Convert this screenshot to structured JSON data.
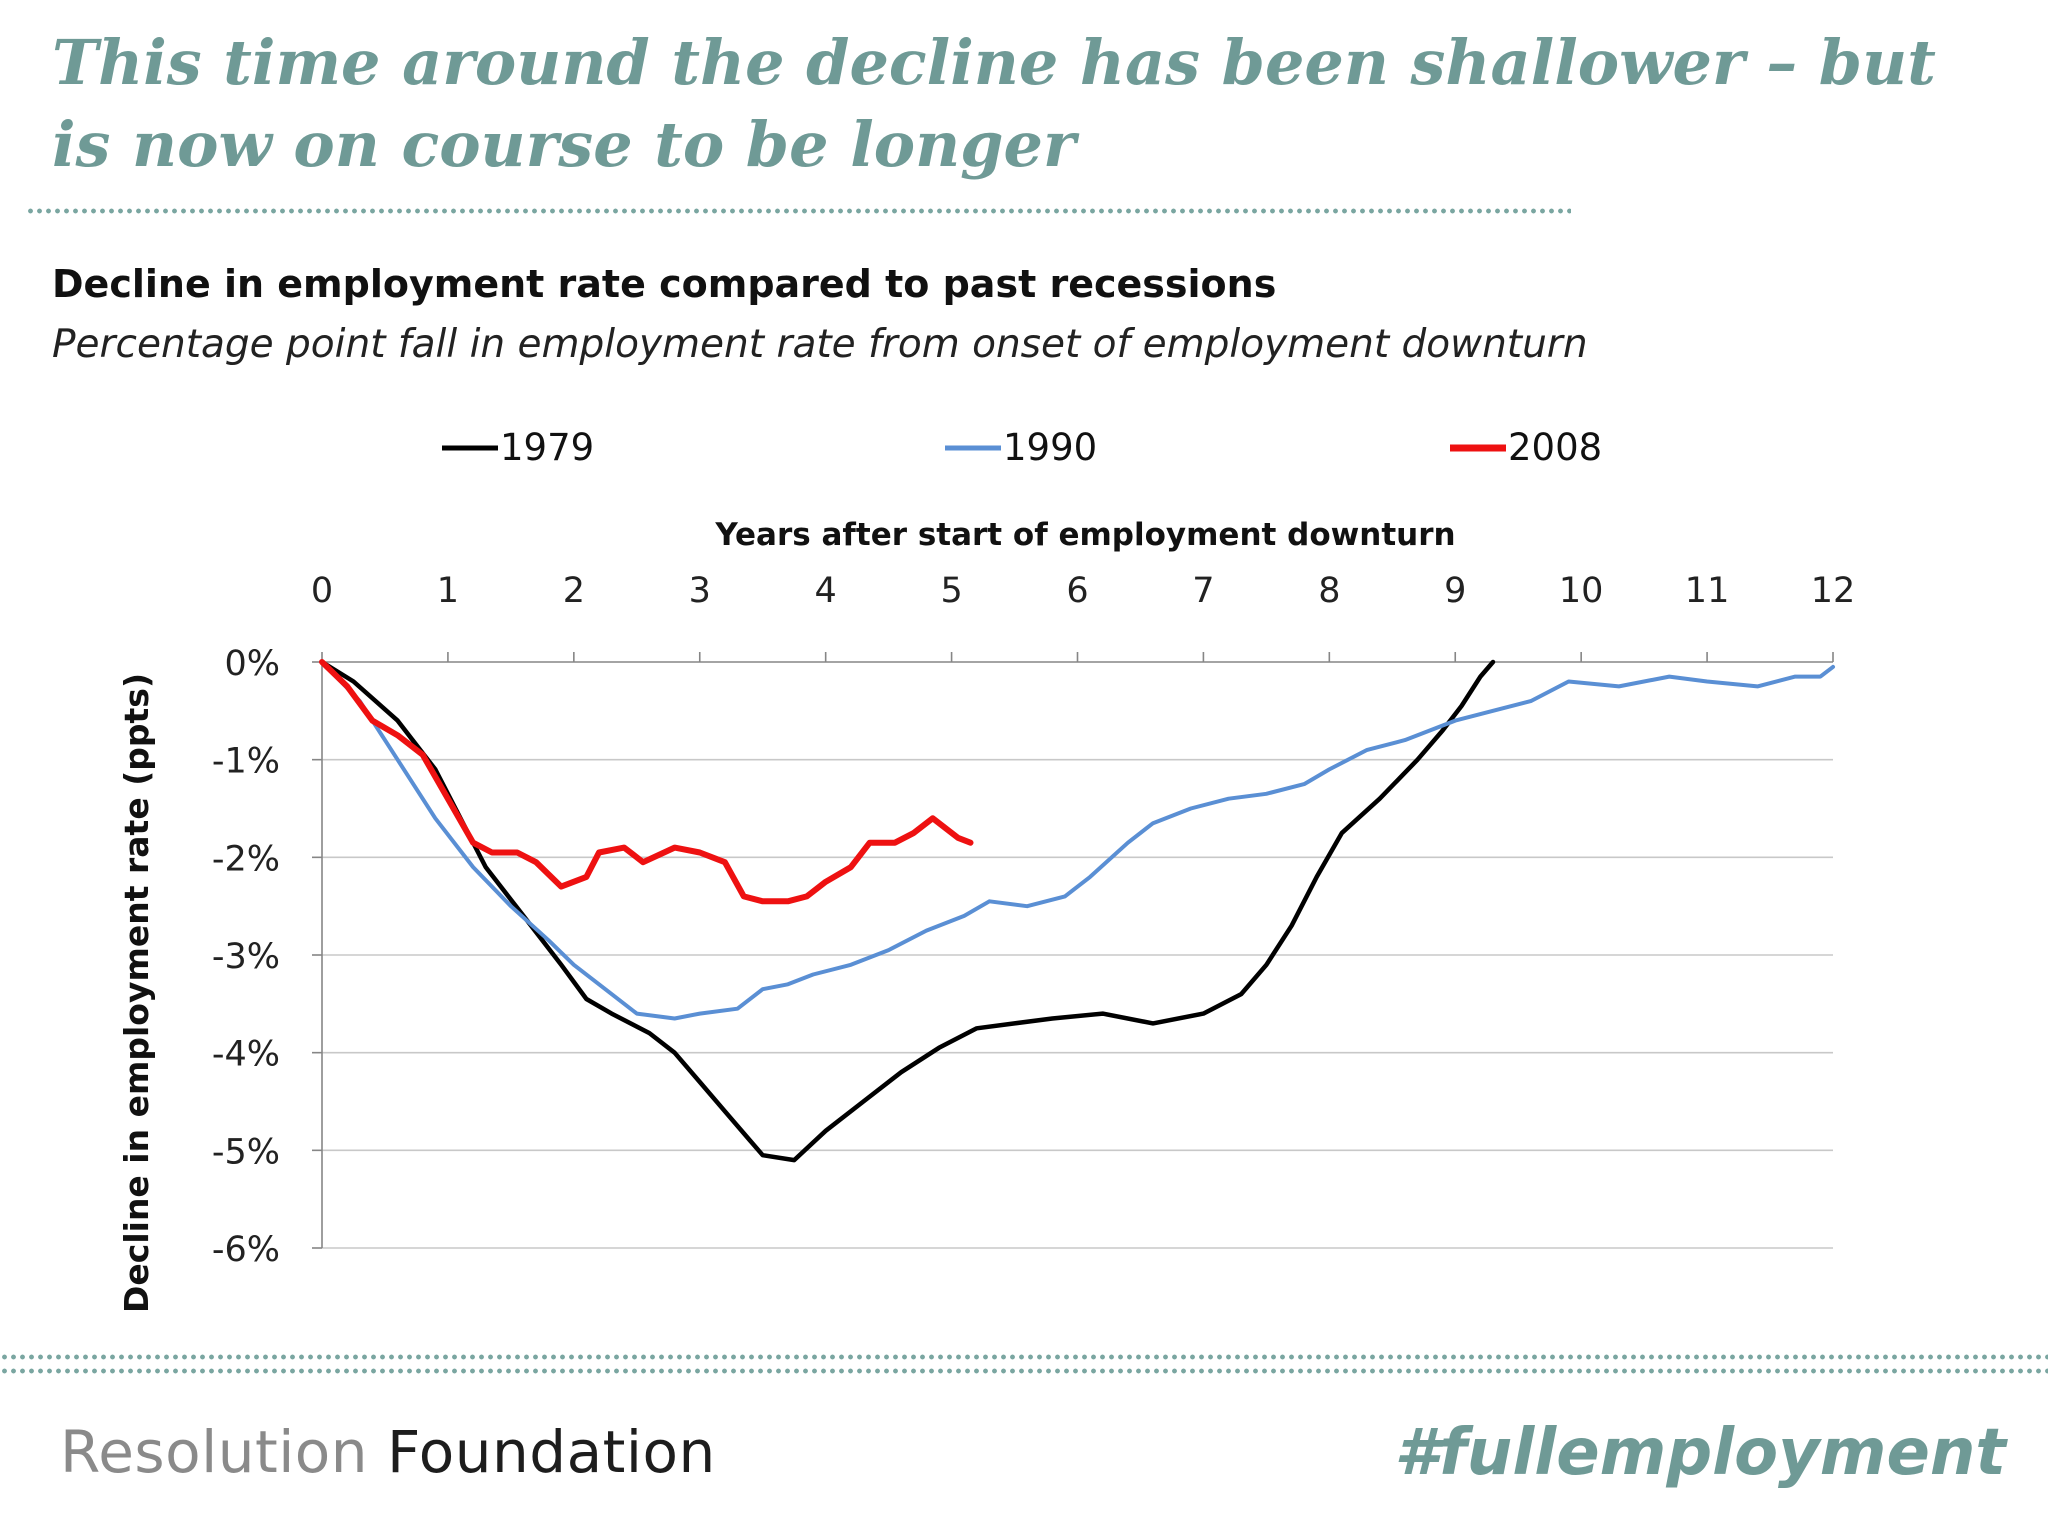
{
  "slide": {
    "headline": "This time around the decline has been shallower – but is now on course to be longer",
    "brand_part1": "Resolution",
    "brand_part2": "Foundation",
    "hashtag": "#fullemployment",
    "accent_color": "#6f9a96"
  },
  "chart_data": {
    "type": "line",
    "title": "Decline in employment rate compared to past recessions",
    "subtitle": "Percentage point fall in employment rate from onset of employment downturn",
    "xlabel": "Years after start of employment downturn",
    "ylabel": "Decline in employment rate (ppts)",
    "x_axis_position": "top",
    "xlim": [
      0,
      12
    ],
    "ylim": [
      -6,
      0
    ],
    "x_ticks": [
      "0",
      "1",
      "2",
      "3",
      "4",
      "5",
      "6",
      "7",
      "8",
      "9",
      "10",
      "11",
      "12"
    ],
    "y_ticks": [
      "0%",
      "-1%",
      "-2%",
      "-3%",
      "-4%",
      "-5%",
      "-6%"
    ],
    "gridlines": true,
    "legend_position": "top",
    "series": [
      {
        "name": "1979",
        "color": "#000000",
        "points": [
          [
            0,
            0
          ],
          [
            0.25,
            -0.2
          ],
          [
            0.6,
            -0.6
          ],
          [
            0.9,
            -1.1
          ],
          [
            1.3,
            -2.1
          ],
          [
            1.6,
            -2.6
          ],
          [
            1.9,
            -3.1
          ],
          [
            2.1,
            -3.45
          ],
          [
            2.3,
            -3.6
          ],
          [
            2.6,
            -3.8
          ],
          [
            2.8,
            -4.0
          ],
          [
            3.0,
            -4.3
          ],
          [
            3.2,
            -4.6
          ],
          [
            3.4,
            -4.9
          ],
          [
            3.5,
            -5.05
          ],
          [
            3.75,
            -5.1
          ],
          [
            4.0,
            -4.8
          ],
          [
            4.3,
            -4.5
          ],
          [
            4.6,
            -4.2
          ],
          [
            4.9,
            -3.95
          ],
          [
            5.2,
            -3.75
          ],
          [
            5.5,
            -3.7
          ],
          [
            5.8,
            -3.65
          ],
          [
            6.2,
            -3.6
          ],
          [
            6.6,
            -3.7
          ],
          [
            7.0,
            -3.6
          ],
          [
            7.3,
            -3.4
          ],
          [
            7.5,
            -3.1
          ],
          [
            7.7,
            -2.7
          ],
          [
            7.9,
            -2.2
          ],
          [
            8.1,
            -1.75
          ],
          [
            8.4,
            -1.4
          ],
          [
            8.7,
            -1.0
          ],
          [
            8.9,
            -0.7
          ],
          [
            9.05,
            -0.45
          ],
          [
            9.2,
            -0.15
          ],
          [
            9.3,
            0.0
          ]
        ]
      },
      {
        "name": "1990",
        "color": "#5a8fd4",
        "points": [
          [
            0,
            0
          ],
          [
            0.3,
            -0.4
          ],
          [
            0.6,
            -1.0
          ],
          [
            0.9,
            -1.6
          ],
          [
            1.2,
            -2.1
          ],
          [
            1.5,
            -2.5
          ],
          [
            1.8,
            -2.85
          ],
          [
            2.0,
            -3.1
          ],
          [
            2.3,
            -3.4
          ],
          [
            2.5,
            -3.6
          ],
          [
            2.8,
            -3.65
          ],
          [
            3.0,
            -3.6
          ],
          [
            3.3,
            -3.55
          ],
          [
            3.5,
            -3.35
          ],
          [
            3.7,
            -3.3
          ],
          [
            3.9,
            -3.2
          ],
          [
            4.2,
            -3.1
          ],
          [
            4.5,
            -2.95
          ],
          [
            4.8,
            -2.75
          ],
          [
            5.1,
            -2.6
          ],
          [
            5.3,
            -2.45
          ],
          [
            5.6,
            -2.5
          ],
          [
            5.9,
            -2.4
          ],
          [
            6.1,
            -2.2
          ],
          [
            6.4,
            -1.85
          ],
          [
            6.6,
            -1.65
          ],
          [
            6.9,
            -1.5
          ],
          [
            7.2,
            -1.4
          ],
          [
            7.5,
            -1.35
          ],
          [
            7.8,
            -1.25
          ],
          [
            8.0,
            -1.1
          ],
          [
            8.3,
            -0.9
          ],
          [
            8.6,
            -0.8
          ],
          [
            9.0,
            -0.6
          ],
          [
            9.3,
            -0.5
          ],
          [
            9.6,
            -0.4
          ],
          [
            9.9,
            -0.2
          ],
          [
            10.3,
            -0.25
          ],
          [
            10.7,
            -0.15
          ],
          [
            11.0,
            -0.2
          ],
          [
            11.4,
            -0.25
          ],
          [
            11.7,
            -0.15
          ],
          [
            11.9,
            -0.15
          ],
          [
            12.0,
            -0.05
          ]
        ]
      },
      {
        "name": "2008",
        "color": "#ee1111",
        "points": [
          [
            0,
            0
          ],
          [
            0.2,
            -0.25
          ],
          [
            0.4,
            -0.6
          ],
          [
            0.6,
            -0.75
          ],
          [
            0.8,
            -0.95
          ],
          [
            1.0,
            -1.4
          ],
          [
            1.2,
            -1.85
          ],
          [
            1.35,
            -1.95
          ],
          [
            1.55,
            -1.95
          ],
          [
            1.7,
            -2.05
          ],
          [
            1.9,
            -2.3
          ],
          [
            2.1,
            -2.2
          ],
          [
            2.2,
            -1.95
          ],
          [
            2.4,
            -1.9
          ],
          [
            2.55,
            -2.05
          ],
          [
            2.8,
            -1.9
          ],
          [
            3.0,
            -1.95
          ],
          [
            3.2,
            -2.05
          ],
          [
            3.35,
            -2.4
          ],
          [
            3.5,
            -2.45
          ],
          [
            3.7,
            -2.45
          ],
          [
            3.85,
            -2.4
          ],
          [
            4.0,
            -2.25
          ],
          [
            4.2,
            -2.1
          ],
          [
            4.35,
            -1.85
          ],
          [
            4.55,
            -1.85
          ],
          [
            4.7,
            -1.75
          ],
          [
            4.85,
            -1.6
          ],
          [
            5.05,
            -1.8
          ],
          [
            5.15,
            -1.85
          ]
        ]
      }
    ]
  }
}
